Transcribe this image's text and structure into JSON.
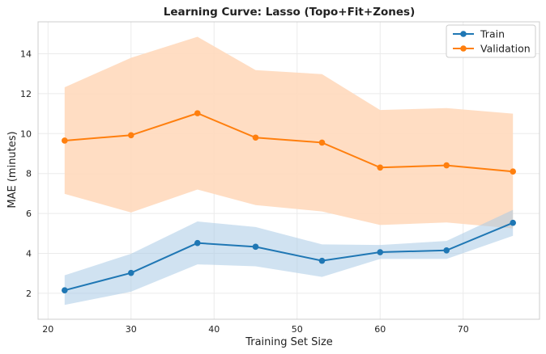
{
  "chart_data": {
    "type": "line",
    "title": "Learning Curve: Lasso (Topo+Fit+Zones)",
    "xlabel": "Training Set Size",
    "ylabel": "MAE (minutes)",
    "xlim": [
      18.8,
      79.2
    ],
    "ylim": [
      0.7,
      15.6
    ],
    "xticks": [
      20,
      30,
      40,
      50,
      60,
      70
    ],
    "yticks": [
      2,
      4,
      6,
      8,
      10,
      12,
      14
    ],
    "grid": true,
    "legend_position": "top-right",
    "x": [
      22,
      30,
      38,
      45,
      53,
      60,
      68,
      76
    ],
    "series": [
      {
        "name": "Train",
        "color": "#1f77b4",
        "band_color": "#a9cbe6",
        "values": [
          2.15,
          3.02,
          4.52,
          4.33,
          3.63,
          4.06,
          4.15,
          5.53
        ],
        "lower": [
          1.42,
          2.08,
          3.45,
          3.35,
          2.82,
          3.72,
          3.72,
          4.88
        ],
        "upper": [
          2.9,
          3.98,
          5.6,
          5.32,
          4.45,
          4.42,
          4.62,
          6.18
        ]
      },
      {
        "name": "Validation",
        "color": "#ff7f0e",
        "band_color": "#ffd9bd",
        "values": [
          9.65,
          9.92,
          11.02,
          9.8,
          9.55,
          8.3,
          8.41,
          8.1
        ],
        "lower": [
          6.98,
          6.05,
          7.2,
          6.42,
          6.1,
          5.42,
          5.55,
          5.25
        ],
        "upper": [
          12.32,
          13.8,
          14.85,
          13.18,
          12.98,
          11.18,
          11.28,
          11.0
        ]
      }
    ]
  }
}
